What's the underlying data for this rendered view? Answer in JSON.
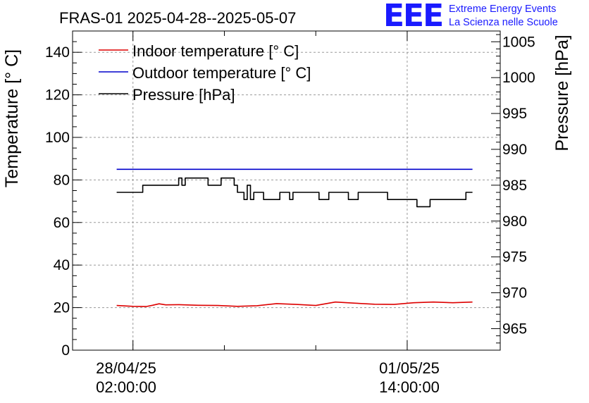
{
  "chart_data": {
    "type": "line",
    "title": "FRAS-01 2025-04-28--2025-05-07",
    "ylabel_left": "Temperature [° C]",
    "ylabel_right": "Pressure [hPa]",
    "ylim_left": [
      0,
      150
    ],
    "ylim_right": [
      962.0,
      1006.5
    ],
    "yticks_left": [
      "0",
      "20",
      "40",
      "60",
      "80",
      "100",
      "120",
      "140"
    ],
    "yticks_right": [
      "965",
      "970",
      "975",
      "980",
      "985",
      "990",
      "995",
      "1000",
      "1005"
    ],
    "xlim_hours": [
      -18.5,
      112.5
    ],
    "xticks": [
      {
        "hours": 0,
        "date": "28/04/25",
        "time": "02:00:00"
      },
      {
        "hours": 84,
        "date": "01/05/25",
        "time": "14:00:00"
      }
    ],
    "x_minor_ticks_hours": [
      28,
      56
    ],
    "legend": {
      "position": "top-left",
      "entries": [
        "Indoor temperature [° C]",
        "Outdoor temperature [° C]",
        "Pressure [hPa]"
      ]
    },
    "series": [
      {
        "name": "Indoor temperature [° C]",
        "axis": "left",
        "color": "#dd0000",
        "x": [
          -5,
          0,
          4,
          6,
          8,
          10,
          14,
          20,
          26,
          32,
          38,
          44,
          50,
          56,
          62,
          68,
          74,
          80,
          86,
          92,
          98,
          104
        ],
        "y": [
          21.0,
          20.6,
          20.5,
          21.1,
          21.8,
          21.3,
          21.4,
          21.1,
          21.0,
          20.6,
          20.9,
          21.9,
          21.5,
          21.0,
          22.6,
          22.1,
          21.6,
          21.5,
          22.3,
          22.6,
          22.3,
          22.6
        ]
      },
      {
        "name": "Outdoor temperature [° C]",
        "axis": "left",
        "color": "#0000cc",
        "x": [
          -5,
          104
        ],
        "y": [
          85.0,
          85.0
        ]
      },
      {
        "name": "Pressure [hPa]",
        "axis": "right",
        "color": "#000000",
        "x": [
          -5,
          3,
          3,
          14,
          14,
          15,
          15,
          16,
          16,
          23,
          23,
          27,
          27,
          31,
          31,
          32,
          32,
          34,
          34,
          35,
          35,
          36,
          36,
          37,
          37,
          38,
          38,
          40,
          40,
          45,
          45,
          48,
          48,
          49,
          49,
          50,
          50,
          57,
          57,
          60,
          60,
          66,
          66,
          69,
          69,
          78,
          78,
          84,
          84,
          87,
          87,
          91,
          91,
          93,
          93,
          102,
          102,
          104
        ],
        "y": [
          984.0,
          984.0,
          985.0,
          985.0,
          986.0,
          986.0,
          985.0,
          985.0,
          986.0,
          986.0,
          985.0,
          985.0,
          986.0,
          986.0,
          985.0,
          985.0,
          984.0,
          984.0,
          983.0,
          983.0,
          985.0,
          985.0,
          983.0,
          983.0,
          984.0,
          984.0,
          984.0,
          984.0,
          983.0,
          983.0,
          984.0,
          984.0,
          983.0,
          983.0,
          984.0,
          984.0,
          984.0,
          984.0,
          983.0,
          983.0,
          984.0,
          984.0,
          983.0,
          983.0,
          984.0,
          984.0,
          983.0,
          983.0,
          983.0,
          983.0,
          982.0,
          982.0,
          983.0,
          983.0,
          983.0,
          983.0,
          984.0,
          984.0
        ]
      }
    ]
  },
  "logo": {
    "mark": "EEE",
    "line1": "Extreme Energy Events",
    "line2": "La Scienza nelle Scuole"
  }
}
